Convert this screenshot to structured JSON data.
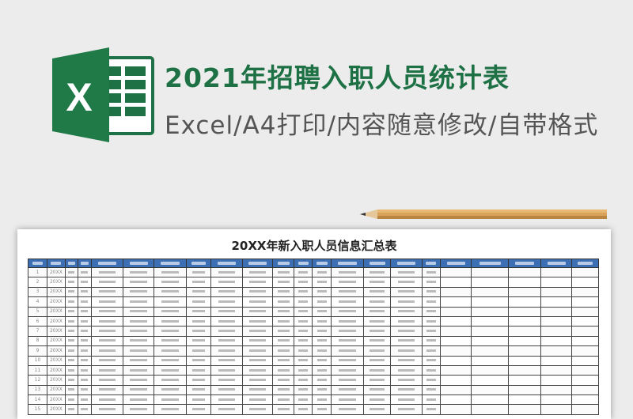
{
  "header": {
    "title": "2021年招聘入职人员统计表",
    "subtitle": "Excel/A4打印/内容随意修改/自带格式"
  },
  "logo": {
    "letter": "X",
    "color": "#1e7145"
  },
  "sheet": {
    "title": "20XX年新入职人员信息汇总表",
    "header_color": "#3d6fb5",
    "column_count": 22,
    "filled_columns": 17,
    "row_numbers": [
      "1",
      "2",
      "3",
      "4",
      "5",
      "6",
      "7",
      "8",
      "9",
      "10",
      "11",
      "12",
      "13",
      "14",
      "15"
    ],
    "year_cell": "20XX"
  }
}
